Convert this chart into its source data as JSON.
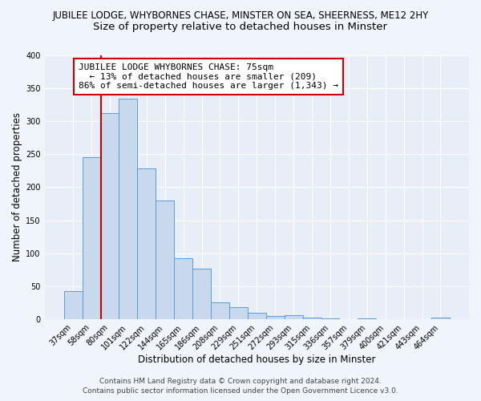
{
  "title": "JUBILEE LODGE, WHYBORNES CHASE, MINSTER ON SEA, SHEERNESS, ME12 2HY",
  "subtitle": "Size of property relative to detached houses in Minster",
  "xlabel": "Distribution of detached houses by size in Minster",
  "ylabel": "Number of detached properties",
  "bar_labels": [
    "37sqm",
    "58sqm",
    "80sqm",
    "101sqm",
    "122sqm",
    "144sqm",
    "165sqm",
    "186sqm",
    "208sqm",
    "229sqm",
    "251sqm",
    "272sqm",
    "293sqm",
    "315sqm",
    "336sqm",
    "357sqm",
    "379sqm",
    "400sqm",
    "421sqm",
    "443sqm",
    "464sqm"
  ],
  "bar_values": [
    43,
    246,
    312,
    334,
    228,
    180,
    92,
    76,
    25,
    18,
    10,
    5,
    6,
    2,
    1,
    0,
    1,
    0,
    0,
    0,
    2
  ],
  "bar_color": "#c8d9ee",
  "bar_edge_color": "#5b9bd5",
  "vline_color": "#cc0000",
  "annotation_title": "JUBILEE LODGE WHYBORNES CHASE: 75sqm",
  "annotation_line1": "  ← 13% of detached houses are smaller (209)",
  "annotation_line2": "86% of semi-detached houses are larger (1,343) →",
  "annotation_box_color": "#ffffff",
  "annotation_box_edge": "#cc0000",
  "ylim": [
    0,
    400
  ],
  "yticks": [
    0,
    50,
    100,
    150,
    200,
    250,
    300,
    350,
    400
  ],
  "footer_line1": "Contains HM Land Registry data © Crown copyright and database right 2024.",
  "footer_line2": "Contains public sector information licensed under the Open Government Licence v3.0.",
  "background_color": "#f0f4fb",
  "plot_background": "#e8eef8",
  "grid_color": "#ffffff",
  "title_fontsize": 8.5,
  "subtitle_fontsize": 9.5,
  "axis_label_fontsize": 8.5,
  "tick_fontsize": 7,
  "footer_fontsize": 6.5,
  "annotation_fontsize": 8
}
